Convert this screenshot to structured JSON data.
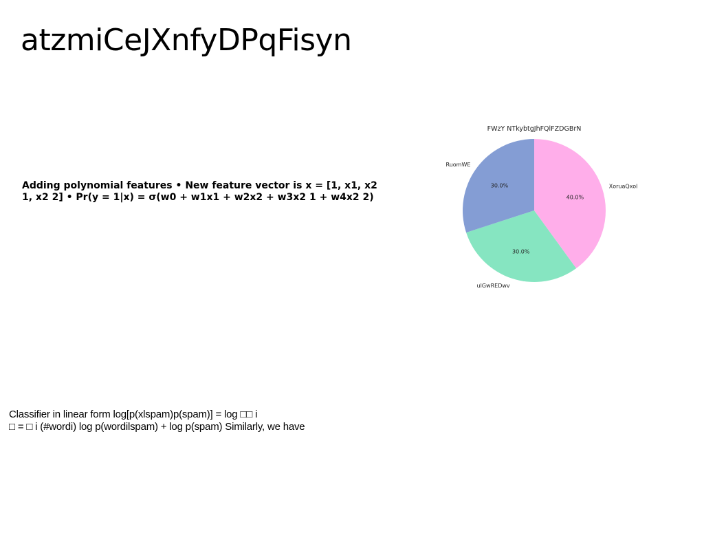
{
  "slide": {
    "title": "atzmiCeJXnfyDPqFisyn",
    "bullets": "Adding polynomial features • New feature vector is x = [1, x1, x2 1, x2 2] • Pr(y = 1|x) = σ(w0 + w1x1 + w2x2 + w3x2 1 + w4x2 2)",
    "body_line_1": "Classifier in linear form log[p(xlspam)p(spam)] = log □□ i",
    "body_line_2": "□ = □ i (#wordi) log p(wordilspam) + log p(spam) Similarly, we have"
  },
  "chart_data": {
    "type": "pie",
    "title": "FWzY NTkybtgJhFQlFZDGBrN",
    "labels": [
      "XoruaQxol",
      "ulGwREDwv",
      "RuomWE"
    ],
    "values": [
      40.0,
      30.0,
      30.0
    ],
    "percent_labels": [
      "40.0%",
      "30.0%",
      "30.0%"
    ],
    "colors": [
      "#ffaeea",
      "#86e5c1",
      "#849dd4"
    ],
    "start_angle_deg": 90,
    "direction": "clockwise",
    "legend": "none"
  }
}
